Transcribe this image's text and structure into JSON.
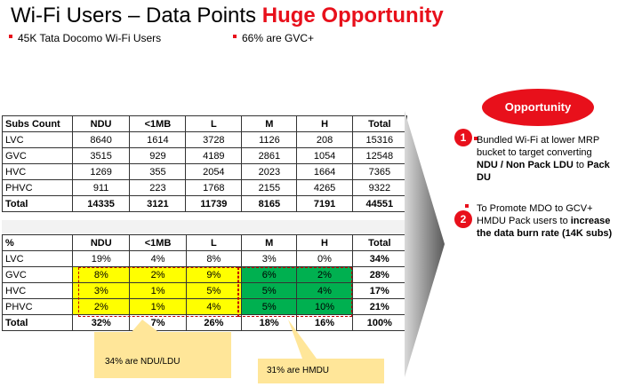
{
  "title": {
    "part1": "Wi-Fi Users  – Data Points ",
    "highlight": "Huge Opportunity"
  },
  "bullets": [
    "45K Tata Docomo Wi-Fi Users",
    "66% are GVC+"
  ],
  "counts_table": {
    "header": [
      "Subs Count",
      "NDU",
      "<1MB",
      "L",
      "M",
      "H",
      "Total"
    ],
    "rows": [
      [
        "LVC",
        "8640",
        "1614",
        "3728",
        "1126",
        "208",
        "15316"
      ],
      [
        "GVC",
        "3515",
        "929",
        "4189",
        "2861",
        "1054",
        "12548"
      ],
      [
        "HVC",
        "1269",
        "355",
        "2054",
        "2023",
        "1664",
        "7365"
      ],
      [
        "PHVC",
        "911",
        "223",
        "1768",
        "2155",
        "4265",
        "9322"
      ],
      [
        "Total",
        "14335",
        "3121",
        "11739",
        "8165",
        "7191",
        "44551"
      ]
    ]
  },
  "pct_table": {
    "header": [
      "%",
      "NDU",
      "<1MB",
      "L",
      "M",
      "H",
      "Total"
    ],
    "rows": [
      [
        "LVC",
        "19%",
        "4%",
        "8%",
        "3%",
        "0%",
        "34%"
      ],
      [
        "GVC",
        "8%",
        "2%",
        "9%",
        "6%",
        "2%",
        "28%"
      ],
      [
        "HVC",
        "3%",
        "1%",
        "5%",
        "5%",
        "4%",
        "17%"
      ],
      [
        "PHVC",
        "2%",
        "1%",
        "4%",
        "5%",
        "10%",
        "21%"
      ],
      [
        "Total",
        "32%",
        "7%",
        "26%",
        "18%",
        "16%",
        "100%"
      ]
    ]
  },
  "callouts": {
    "ndu": "34% are NDU/LDU",
    "hmdu": "31% are HMDU"
  },
  "opportunity": {
    "heading": "Opportunity",
    "item1": {
      "num": "1",
      "t1": "Bundled Wi-Fi  at lower MRP bucket to target converting ",
      "b1": "NDU / Non Pack LDU",
      "t2": " to ",
      "b2": "Pack DU"
    },
    "item2": {
      "num": "2",
      "t1": "To Promote MDO  to GCV+ HMDU Pack users to ",
      "b1": "increase the data burn rate  (14K subs)"
    }
  },
  "colors": {
    "accent": "#e8101b",
    "yellow": "#ffff00",
    "green": "#00b050",
    "callout": "#ffe699"
  }
}
